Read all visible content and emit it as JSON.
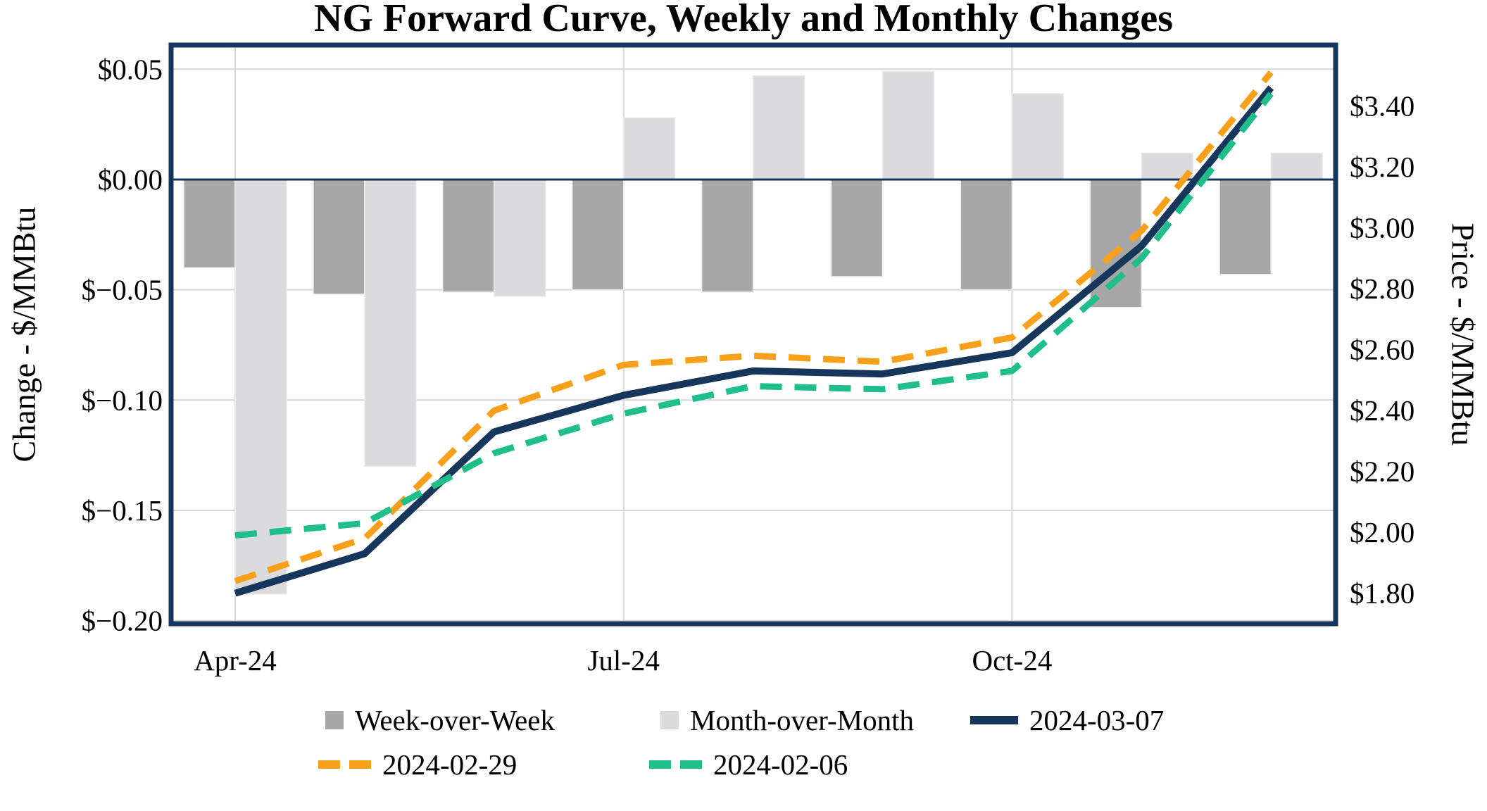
{
  "title": "NG Forward Curve, Weekly and Monthly Changes",
  "left_axis": {
    "title": "Change - $/MMBtu",
    "ticks": [
      "$0.05",
      "$0.00",
      "$−0.05",
      "$−0.10",
      "$−0.15",
      "$−0.20"
    ],
    "tick_values": [
      0.05,
      0.0,
      -0.05,
      -0.1,
      -0.15,
      -0.2
    ],
    "min": -0.2,
    "max": 0.06
  },
  "right_axis": {
    "title": "Price - $/MMBtu",
    "ticks": [
      "$3.40",
      "$3.20",
      "$3.00",
      "$2.80",
      "$2.60",
      "$2.40",
      "$2.20",
      "$2.00",
      "$1.80"
    ],
    "tick_values": [
      3.4,
      3.2,
      3.0,
      2.8,
      2.6,
      2.4,
      2.2,
      2.0,
      1.8
    ],
    "min": 1.7,
    "max": 3.6
  },
  "x_axis": {
    "visible_labels": [
      "Apr-24",
      "Jul-24",
      "Oct-24"
    ],
    "visible_label_month_indexes": [
      0,
      3,
      6
    ]
  },
  "legend": {
    "items": [
      {
        "label": "Week-over-Week",
        "marker": "bar",
        "color_key": "bar_dark"
      },
      {
        "label": "Month-over-Month",
        "marker": "bar",
        "color_key": "bar_light"
      },
      {
        "label": "2024-03-07",
        "marker": "line",
        "color_key": "navy"
      },
      {
        "label": "2024-02-29",
        "marker": "dash",
        "color_key": "orange"
      },
      {
        "label": "2024-02-06",
        "marker": "dash",
        "color_key": "green"
      }
    ]
  },
  "colors": {
    "bar_dark": "#A7A7A7",
    "bar_light": "#DBDBDD",
    "navy": "#16365C",
    "orange": "#F9A01B",
    "green": "#1FBE8A",
    "gridline": "#D7D7D7",
    "border": "#16365C",
    "text": "#000000"
  },
  "chart_data": {
    "type": "combo",
    "categories": [
      "Apr-24",
      "May-24",
      "Jun-24",
      "Jul-24",
      "Aug-24",
      "Sep-24",
      "Oct-24",
      "Nov-24",
      "Dec-24"
    ],
    "series": [
      {
        "name": "Week-over-Week",
        "type": "bar",
        "axis": "left",
        "color_key": "bar_dark",
        "values": [
          -0.04,
          -0.052,
          -0.051,
          -0.05,
          -0.051,
          -0.044,
          -0.05,
          -0.058,
          -0.043
        ]
      },
      {
        "name": "Month-over-Month",
        "type": "bar",
        "axis": "left",
        "color_key": "bar_light",
        "values": [
          -0.188,
          -0.13,
          -0.053,
          0.028,
          0.047,
          0.049,
          0.039,
          0.012,
          0.012
        ]
      },
      {
        "name": "2024-03-07",
        "type": "line",
        "style": "solid",
        "axis": "right",
        "color_key": "navy",
        "values": [
          1.8,
          1.93,
          2.33,
          2.45,
          2.53,
          2.52,
          2.59,
          2.94,
          3.46
        ]
      },
      {
        "name": "2024-02-29",
        "type": "line",
        "style": "dashed",
        "axis": "right",
        "color_key": "orange",
        "values": [
          1.84,
          1.98,
          2.4,
          2.55,
          2.58,
          2.56,
          2.64,
          2.99,
          3.51
        ]
      },
      {
        "name": "2024-02-06",
        "type": "line",
        "style": "dashed",
        "axis": "right",
        "color_key": "green",
        "values": [
          1.99,
          2.03,
          2.26,
          2.39,
          2.48,
          2.47,
          2.53,
          2.9,
          3.44
        ]
      }
    ],
    "title": "NG Forward Curve, Weekly and Monthly Changes",
    "xlabel": "",
    "ylabel_left": "Change - $/MMBtu",
    "ylabel_right": "Price - $/MMBtu",
    "ylim_left": [
      -0.2,
      0.06
    ],
    "ylim_right": [
      1.7,
      3.6
    ],
    "grid": true,
    "legend_position": "bottom"
  }
}
